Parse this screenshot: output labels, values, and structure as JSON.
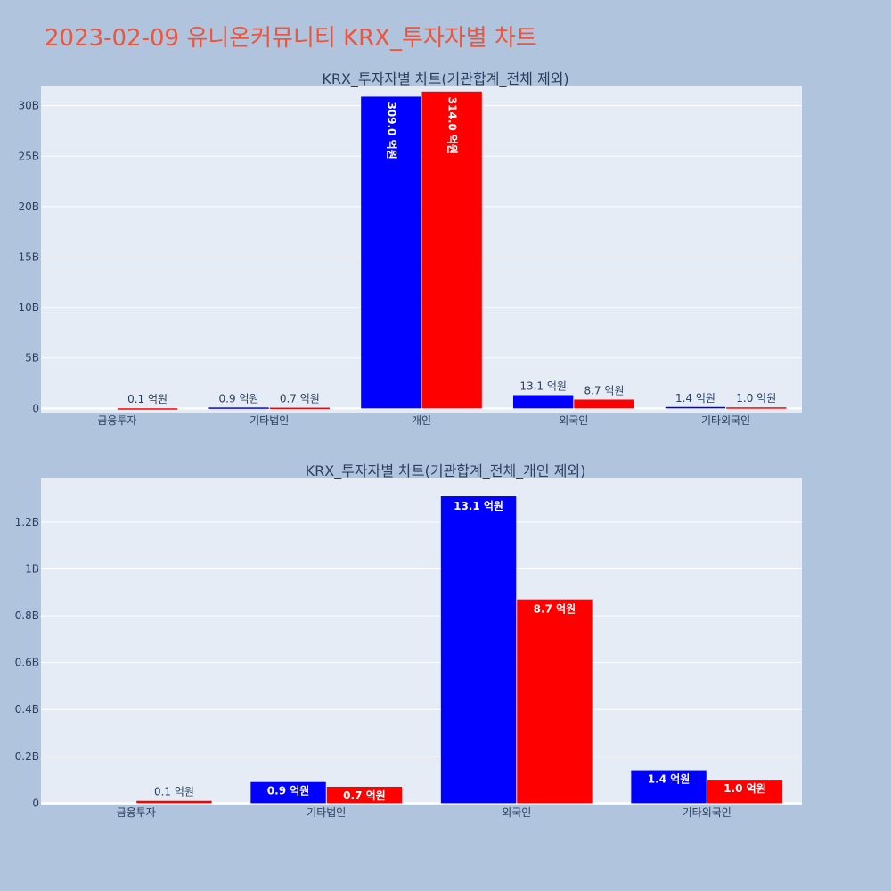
{
  "page_title": "2023-02-09 유니온커뮤니티 KRX_투자자별 차트",
  "colors": {
    "buy": "#0000ff",
    "sell": "#ff0000",
    "plot_bg": "#e5ecf6",
    "page_bg": "#b0c4de",
    "title": "#ef553b"
  },
  "chart_data": [
    {
      "type": "bar",
      "title": "KRX_투자자별 차트(기관합계_전체 제외)",
      "categories": [
        "금융투자",
        "기타법인",
        "개인",
        "외국인",
        "기타외국인"
      ],
      "series": [
        {
          "color": "#0000ff",
          "values": [
            0,
            90000000,
            30900000000,
            1310000000,
            140000000
          ],
          "labels": [
            "",
            "0.9 억원",
            "309.0 억원",
            "13.1 억원",
            "1.4 억원"
          ]
        },
        {
          "color": "#ff0000",
          "values": [
            10000000,
            70000000,
            31400000000,
            870000000,
            100000000
          ],
          "labels": [
            "0.1 억원",
            "0.7 억원",
            "314.0 억원",
            "8.7 억원",
            "1.0 억원"
          ]
        }
      ],
      "yticks": [
        0,
        5000000000,
        10000000000,
        15000000000,
        20000000000,
        25000000000,
        30000000000
      ],
      "ytick_labels": [
        "0",
        "5B",
        "10B",
        "15B",
        "20B",
        "25B",
        "30B"
      ],
      "ylim": [
        -500000000,
        32000000000
      ],
      "grid": true
    },
    {
      "type": "bar",
      "title": "KRX_투자자별 차트(기관합계_전체_개인 제외)",
      "categories": [
        "금융투자",
        "기타법인",
        "외국인",
        "기타외국인"
      ],
      "series": [
        {
          "color": "#0000ff",
          "values": [
            0,
            90000000,
            1310000000,
            140000000
          ],
          "labels": [
            "",
            "0.9 억원",
            "13.1 억원",
            "1.4 억원"
          ]
        },
        {
          "color": "#ff0000",
          "values": [
            10000000,
            70000000,
            870000000,
            100000000
          ],
          "labels": [
            "0.1 억원",
            "0.7 억원",
            "8.7 억원",
            "1.0 억원"
          ]
        }
      ],
      "yticks": [
        0,
        200000000,
        400000000,
        600000000,
        800000000,
        1000000000,
        1200000000
      ],
      "ytick_labels": [
        "0",
        "0.2B",
        "0.4B",
        "0.6B",
        "0.8B",
        "1B",
        "1.2B"
      ],
      "ylim": [
        -10000000,
        1390000000
      ],
      "grid": true
    }
  ]
}
